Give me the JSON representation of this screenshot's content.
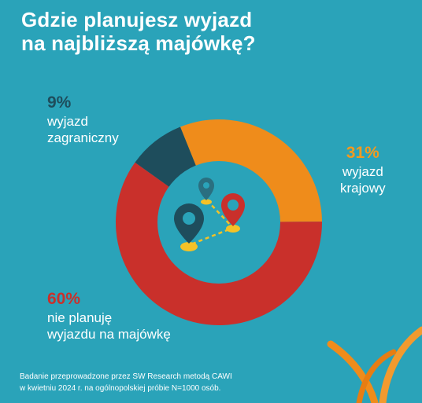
{
  "title": "Gdzie planujesz wyjazd\nna najbliższą majówkę?",
  "colors": {
    "background": "#2aa3b9",
    "domestic": "#ef8c1b",
    "none": "#c9302b",
    "abroad": "#1e4d5c",
    "white": "#ffffff"
  },
  "chart_data": {
    "type": "pie",
    "categories": [
      "wyjazd krajowy",
      "nie planuję wyjazdu na majówkę",
      "wyjazd zagraniczny"
    ],
    "values": [
      31,
      60,
      9
    ],
    "unit": "%",
    "slices": [
      {
        "value": 31,
        "percent_label": "31%",
        "label": "wyjazd\nkrajowy",
        "color": "#ef8c1b"
      },
      {
        "value": 60,
        "percent_label": "60%",
        "label": "nie planuję\nwyjazdu na majówkę",
        "color": "#c9302b"
      },
      {
        "value": 9,
        "percent_label": "9%",
        "label": "wyjazd\nzagraniczny",
        "color": "#1e4d5c"
      }
    ]
  },
  "center_icon": "map-pins-route-icon",
  "corner_decoration": "orange-ribbon-icon",
  "footnote": {
    "line1": "Badanie przeprowadzone przez SW Research metodą CAWI",
    "line2": "w kwietniu 2024 r. na ogólnopolskiej próbie N=1000 osób."
  }
}
